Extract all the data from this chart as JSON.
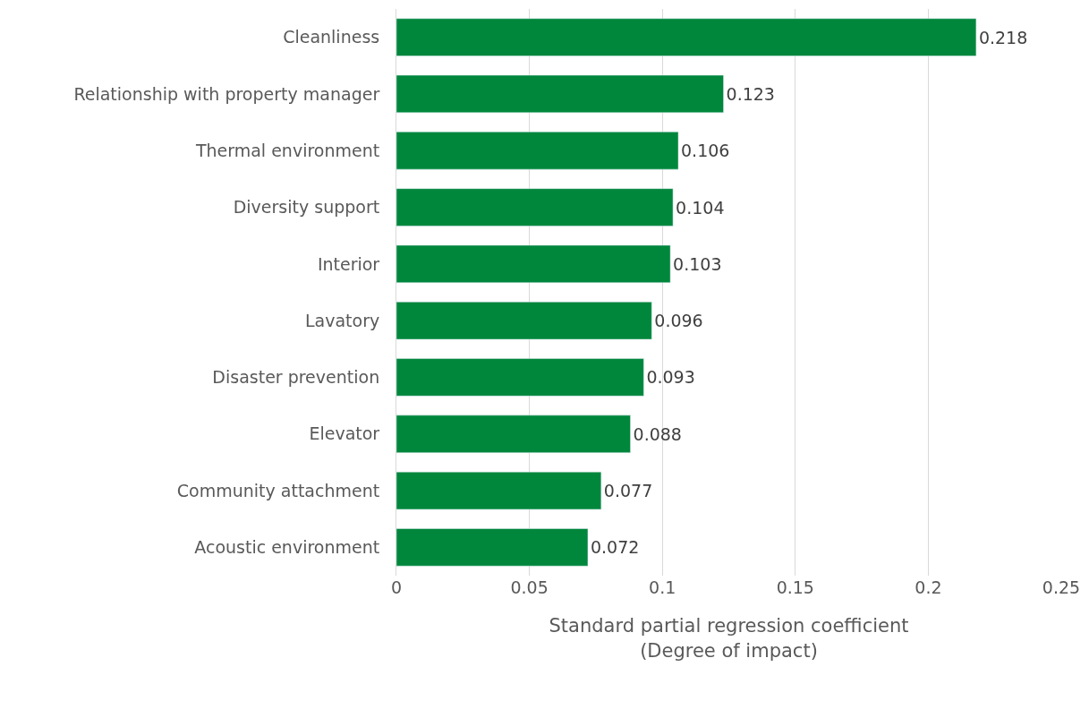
{
  "chart_data": {
    "type": "bar",
    "orientation": "horizontal",
    "categories": [
      "Cleanliness",
      "Relationship with property manager",
      "Thermal environment",
      "Diversity support",
      "Interior",
      "Lavatory",
      "Disaster prevention",
      "Elevator",
      "Community attachment",
      "Acoustic environment"
    ],
    "values": [
      0.218,
      0.123,
      0.106,
      0.104,
      0.103,
      0.096,
      0.093,
      0.088,
      0.077,
      0.072
    ],
    "color": "#00873c",
    "xlim": [
      0,
      0.25
    ],
    "xticks": [
      0,
      0.05,
      0.1,
      0.15,
      0.2,
      0.25
    ],
    "xlabel": "Standard partial regression coefficient\n(Degree of impact)",
    "grid": "x",
    "data_labels": true,
    "legend": false
  }
}
